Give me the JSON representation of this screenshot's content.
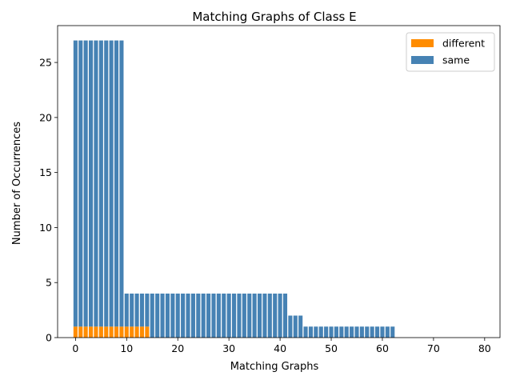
{
  "chart_data": {
    "type": "bar",
    "title": "Matching Graphs of Class E",
    "xlabel": "Matching Graphs",
    "ylabel": "Number of Occurrences",
    "xlim": [
      -3.5,
      83
    ],
    "ylim": [
      0,
      28.35
    ],
    "xticks": [
      0,
      10,
      20,
      30,
      40,
      50,
      60,
      70,
      80
    ],
    "yticks": [
      0,
      5,
      10,
      15,
      20,
      25
    ],
    "grid": false,
    "legend_position": "top-right",
    "stacked": true,
    "x": [
      0,
      1,
      2,
      3,
      4,
      5,
      6,
      7,
      8,
      9,
      10,
      11,
      12,
      13,
      14,
      15,
      16,
      17,
      18,
      19,
      20,
      21,
      22,
      23,
      24,
      25,
      26,
      27,
      28,
      29,
      30,
      31,
      32,
      33,
      34,
      35,
      36,
      37,
      38,
      39,
      40,
      41,
      42,
      43,
      44,
      45,
      46,
      47,
      48,
      49,
      50,
      51,
      52,
      53,
      54,
      55,
      56,
      57,
      58,
      59,
      60,
      61,
      62
    ],
    "series": [
      {
        "name": "different",
        "color": "#ff8c00",
        "values": [
          1,
          1,
          1,
          1,
          1,
          1,
          1,
          1,
          1,
          1,
          1,
          1,
          1,
          1,
          1,
          0,
          0,
          0,
          0,
          0,
          0,
          0,
          0,
          0,
          0,
          0,
          0,
          0,
          0,
          0,
          0,
          0,
          0,
          0,
          0,
          0,
          0,
          0,
          0,
          0,
          0,
          0,
          0,
          0,
          0,
          0,
          0,
          0,
          0,
          0,
          0,
          0,
          0,
          0,
          0,
          0,
          0,
          0,
          0,
          0,
          0,
          0,
          0
        ]
      },
      {
        "name": "same",
        "color": "#4682b4",
        "values": [
          26,
          26,
          26,
          26,
          26,
          26,
          26,
          26,
          26,
          26,
          3,
          3,
          3,
          3,
          3,
          4,
          4,
          4,
          4,
          4,
          4,
          4,
          4,
          4,
          4,
          4,
          4,
          4,
          4,
          4,
          4,
          4,
          4,
          4,
          4,
          4,
          4,
          4,
          4,
          4,
          4,
          4,
          2,
          2,
          2,
          1,
          1,
          1,
          1,
          1,
          1,
          1,
          1,
          1,
          1,
          1,
          1,
          1,
          1,
          1,
          1,
          1,
          1
        ]
      }
    ]
  }
}
